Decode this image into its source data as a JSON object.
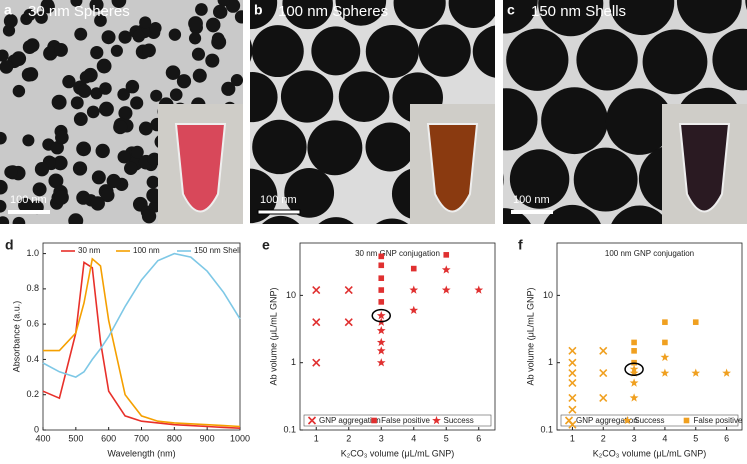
{
  "images": [
    {
      "label": "a",
      "title": "30 nm Spheres",
      "scale_bar": "100 nm"
    },
    {
      "label": "b",
      "title": "100 nm Spheres",
      "scale_bar": "100 nm"
    },
    {
      "label": "c",
      "title": "150 nm Shells",
      "scale_bar": "100 nm"
    }
  ],
  "chart_data": [
    {
      "type": "line",
      "panel_label": "d",
      "x_label": "Wavelength (nm)",
      "y_label": "Absorbance (a.u.)",
      "x": [
        400,
        450,
        500,
        525,
        550,
        575,
        600,
        650,
        700,
        750,
        800,
        850,
        900,
        950,
        1000
      ],
      "series": [
        {
          "name": "30 nm",
          "color": "#e8302a",
          "values": [
            0.22,
            0.18,
            0.55,
            0.95,
            0.92,
            0.5,
            0.22,
            0.08,
            0.05,
            0.04,
            0.03,
            0.025,
            0.02,
            0.015,
            0.01
          ]
        },
        {
          "name": "100 nm",
          "color": "#f5a000",
          "values": [
            0.45,
            0.45,
            0.55,
            0.72,
            0.97,
            0.93,
            0.62,
            0.2,
            0.08,
            0.05,
            0.04,
            0.035,
            0.03,
            0.025,
            0.02
          ]
        },
        {
          "name": "150 nm Shell",
          "color": "#7ec8e6",
          "values": [
            0.38,
            0.33,
            0.3,
            0.33,
            0.4,
            0.46,
            0.53,
            0.7,
            0.85,
            0.96,
            1.0,
            0.98,
            0.9,
            0.78,
            0.63
          ]
        }
      ],
      "xlim": [
        400,
        1000
      ],
      "xticks": [
        400,
        500,
        600,
        700,
        800,
        900,
        1000
      ],
      "ylim": [
        0,
        1.06
      ],
      "yticks": [
        0,
        0.2,
        0.4,
        0.6,
        0.8,
        {
          "value": 1,
          "label": "1.0"
        }
      ],
      "legend": "top"
    },
    {
      "type": "scatter",
      "panel_label": "e",
      "title": "30 nm GNP conjugation",
      "x_label": "K₂CO₃ volume (μL/mL GNP)",
      "y_label": "Ab volume (μL/mL GNP)",
      "log_y": true,
      "series": [
        {
          "name": "GNP aggregation",
          "marker": "x",
          "color": "#e03030",
          "x": [
            1,
            1,
            1,
            2,
            2
          ],
          "values": [
            12,
            4,
            1,
            12,
            4
          ]
        },
        {
          "name": "False positive",
          "marker": "square",
          "color": "#e03030",
          "x": [
            3,
            3,
            3,
            3,
            3,
            4,
            5
          ],
          "values": [
            38,
            28,
            18,
            12,
            8,
            25,
            40
          ]
        },
        {
          "name": "Success",
          "marker": "star",
          "color": "#e03030",
          "x": [
            3,
            3,
            3,
            3,
            3,
            3,
            4,
            4,
            5,
            5,
            6
          ],
          "values": [
            5,
            4,
            3,
            2,
            1.5,
            1,
            12,
            6,
            24,
            12,
            12
          ]
        }
      ],
      "xlim": [
        0.5,
        6.5
      ],
      "xticks": [
        1,
        2,
        3,
        4,
        5,
        6
      ],
      "ylim": [
        0.1,
        60
      ],
      "yticks": [
        0.1,
        1,
        10
      ],
      "legend": "bottom"
    },
    {
      "type": "scatter",
      "panel_label": "f",
      "title": "100 nm GNP conjugation",
      "x_label": "K₂CO₃ volume (μL/mL GNP)",
      "y_label": "Ab volume (μL/mL GNP)",
      "log_y": true,
      "series": [
        {
          "name": "GNP aggregation",
          "marker": "x",
          "color": "#f0a020",
          "x": [
            1,
            1,
            1,
            1,
            1,
            1,
            1,
            2,
            2,
            2
          ],
          "values": [
            1.5,
            1,
            0.7,
            0.5,
            0.3,
            0.2,
            0.12,
            1.5,
            0.7,
            0.3
          ]
        },
        {
          "name": "Success",
          "marker": "star",
          "color": "#f0a020",
          "x": [
            3,
            3,
            3,
            3,
            4,
            4,
            5,
            6
          ],
          "values": [
            0.8,
            0.7,
            0.5,
            0.3,
            1.2,
            0.7,
            0.7,
            0.7
          ]
        },
        {
          "name": "False positive",
          "marker": "square",
          "color": "#f0a020",
          "x": [
            3,
            3,
            3,
            4,
            4,
            5
          ],
          "values": [
            2,
            1.5,
            1,
            4,
            2,
            4
          ]
        }
      ],
      "xlim": [
        0.5,
        6.5
      ],
      "xticks": [
        1,
        2,
        3,
        4,
        5,
        6
      ],
      "ylim": [
        0.1,
        60
      ],
      "yticks": [
        0.1,
        1,
        10
      ],
      "legend": "bottom"
    }
  ]
}
